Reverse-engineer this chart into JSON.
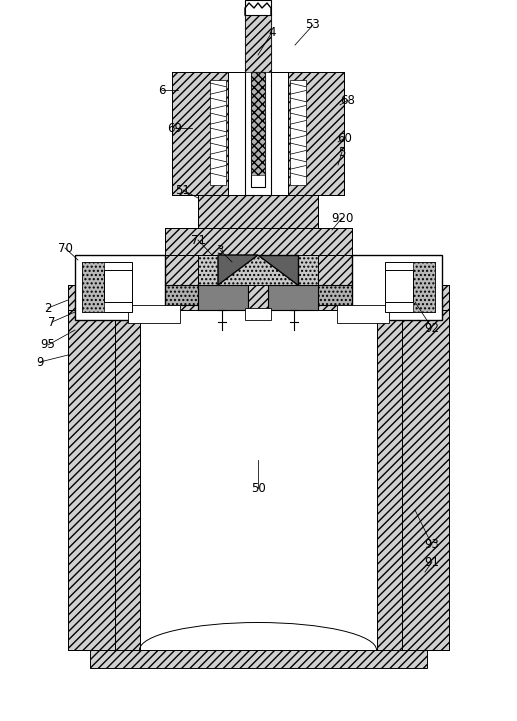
{
  "bg_color": "#ffffff",
  "fig_width": 5.17,
  "fig_height": 7.21,
  "dpi": 100,
  "labels": {
    "4": [
      272,
      32,
      258,
      55
    ],
    "53": [
      313,
      25,
      295,
      45
    ],
    "6": [
      162,
      90,
      178,
      90
    ],
    "68": [
      348,
      100,
      340,
      105
    ],
    "69": [
      175,
      128,
      192,
      128
    ],
    "60": [
      345,
      138,
      338,
      142
    ],
    "5": [
      342,
      152,
      338,
      165
    ],
    "51": [
      183,
      190,
      198,
      198
    ],
    "920": [
      342,
      218,
      332,
      230
    ],
    "71": [
      198,
      240,
      212,
      255
    ],
    "3": [
      220,
      250,
      232,
      262
    ],
    "70": [
      65,
      248,
      78,
      260
    ],
    "2": [
      48,
      308,
      68,
      300
    ],
    "7": [
      52,
      322,
      75,
      312
    ],
    "92": [
      432,
      328,
      415,
      302
    ],
    "95": [
      48,
      345,
      75,
      330
    ],
    "9": [
      40,
      362,
      68,
      355
    ],
    "50": [
      258,
      488,
      258,
      460
    ],
    "93": [
      432,
      545,
      415,
      510
    ],
    "91": [
      432,
      562,
      425,
      572
    ]
  }
}
